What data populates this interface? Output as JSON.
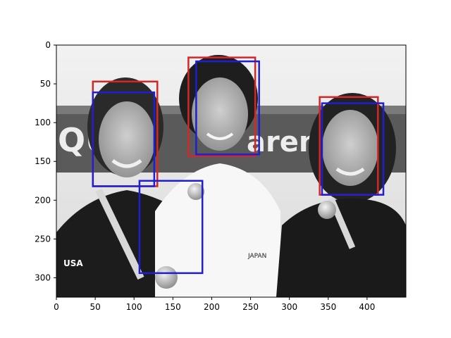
{
  "figure": {
    "kind": "matplotlib imshow with overlaid detection boxes",
    "image_description_none": "",
    "x_axis": {
      "ticks": [
        0,
        50,
        100,
        150,
        200,
        250,
        300,
        350,
        400
      ],
      "range": [
        0,
        450
      ]
    },
    "y_axis": {
      "ticks": [
        0,
        50,
        100,
        150,
        200,
        250,
        300
      ],
      "range": [
        0,
        325
      ],
      "inverted": true
    },
    "box_colors": {
      "red": "#d62728",
      "blue": "#1f1fd0"
    },
    "red_boxes": [
      {
        "x0": 47,
        "y0": 47,
        "x1": 130,
        "y1": 182
      },
      {
        "x0": 170,
        "y0": 16,
        "x1": 256,
        "y1": 143
      },
      {
        "x0": 339,
        "y0": 67,
        "x1": 414,
        "y1": 193
      }
    ],
    "blue_boxes": [
      {
        "x0": 47,
        "y0": 61,
        "x1": 126,
        "y1": 182
      },
      {
        "x0": 180,
        "y0": 21,
        "x1": 261,
        "y1": 141
      },
      {
        "x0": 342,
        "y0": 75,
        "x1": 421,
        "y1": 193
      },
      {
        "x0": 107,
        "y0": 175,
        "x1": 188,
        "y1": 294
      }
    ]
  },
  "photo_text": {
    "banner_left": "QU",
    "banner_right": "arena",
    "usa": "USA",
    "japan": "JAPAN"
  }
}
